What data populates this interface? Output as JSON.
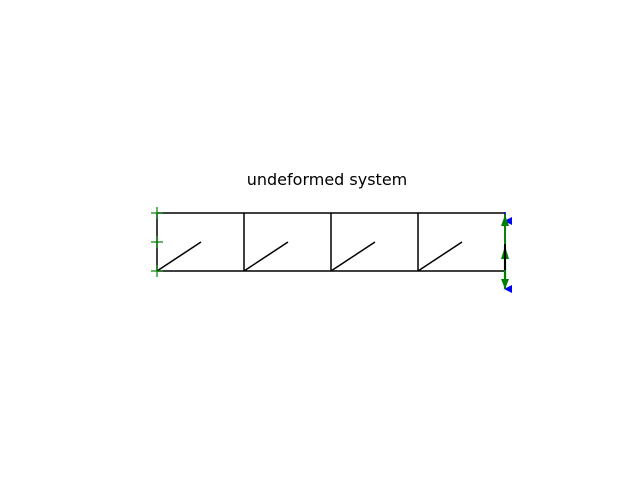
{
  "figure": {
    "title": "undeformed system"
  },
  "colors": {
    "structure": "#000000",
    "support_symbol": "#008000",
    "applied_load": "#0000ff",
    "reaction": "#008000"
  },
  "structure": {
    "panels": 4,
    "diagonal_per_panel": true
  },
  "symbols": {
    "supports": "fixed-support-crosses-icon",
    "loads": "down-arrow-icon",
    "reactions": "up-arrow-icon"
  }
}
